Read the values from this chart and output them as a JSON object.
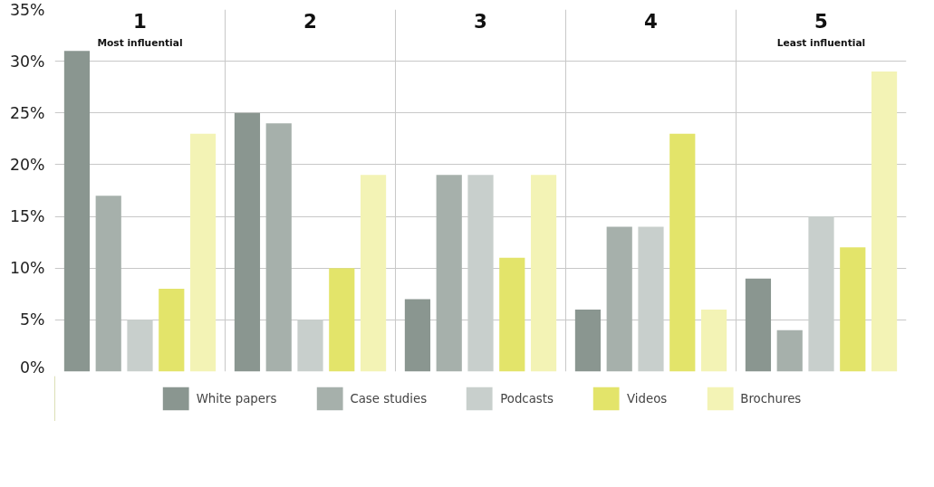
{
  "chart_data": {
    "type": "bar",
    "categories": [
      "1",
      "2",
      "3",
      "4",
      "5"
    ],
    "series": [
      {
        "name": "White papers",
        "color": "#8a9690",
        "values": [
          31,
          25,
          7,
          6,
          9
        ]
      },
      {
        "name": "Case studies",
        "color": "#a6b0ab",
        "values": [
          17,
          24,
          19,
          14,
          4
        ]
      },
      {
        "name": "Podcasts",
        "color": "#c8cfcc",
        "values": [
          5,
          5,
          19,
          14,
          15
        ]
      },
      {
        "name": "Videos",
        "color": "#e3e46a",
        "values": [
          8,
          10,
          11,
          23,
          12
        ]
      },
      {
        "name": "Brochures",
        "color": "#f3f3b5",
        "values": [
          23,
          19,
          19,
          6,
          29
        ]
      }
    ],
    "annotations": [
      "Most influential",
      "Least influential"
    ],
    "ylim": [
      0,
      35
    ],
    "yticks": [
      {
        "value": 0,
        "label": "0%"
      },
      {
        "value": 5,
        "label": "5%"
      },
      {
        "value": 10,
        "label": "10%"
      },
      {
        "value": 15,
        "label": "15%"
      },
      {
        "value": 20,
        "label": "20%"
      },
      {
        "value": 25,
        "label": "25%"
      },
      {
        "value": 30,
        "label": "30%"
      },
      {
        "value": 35,
        "label": "35%"
      }
    ],
    "grid": true,
    "legend": "bottom"
  }
}
